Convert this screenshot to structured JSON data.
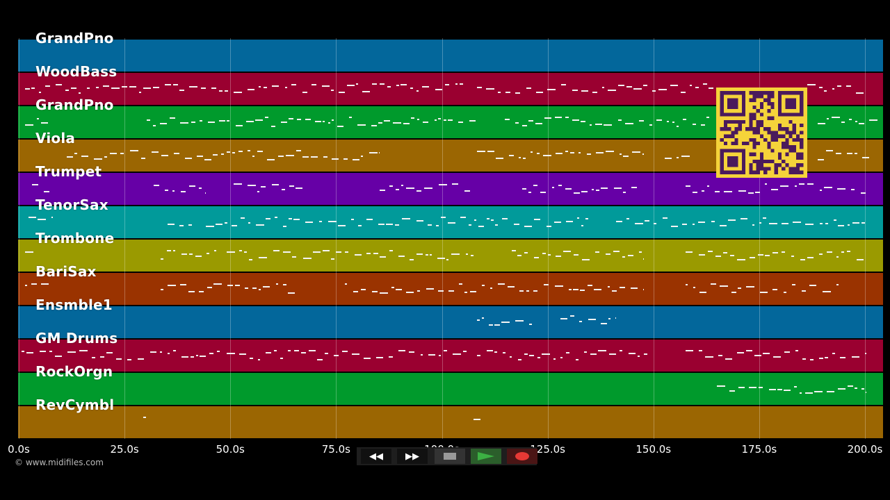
{
  "tracks": [
    {
      "label": "GrandPno",
      "color": "#03679b"
    },
    {
      "label": "WoodBass",
      "color": "#9a0030"
    },
    {
      "label": "GrandPno",
      "color": "#009a2c"
    },
    {
      "label": "Viola",
      "color": "#9b6602"
    },
    {
      "label": "Trumpet",
      "color": "#6600a6"
    },
    {
      "label": "TenorSax",
      "color": "#019a9a"
    },
    {
      "label": "Trombone",
      "color": "#9a9a00"
    },
    {
      "label": "BariSax",
      "color": "#9a3300"
    },
    {
      "label": "Ensmble1",
      "color": "#03679b"
    },
    {
      "label": "GM Drums",
      "color": "#9a0030"
    },
    {
      "label": "RockOrgn",
      "color": "#009a2c"
    },
    {
      "label": "RevCymbl",
      "color": "#9b6602"
    }
  ],
  "timeline": {
    "ticks": [
      "0.0s",
      "25.0s",
      "50.0s",
      "75.0s",
      "100.0s",
      "125.0s",
      "150.0s",
      "175.0s",
      "200.0s"
    ]
  },
  "copyright": "© www.midifiles.com",
  "transport": {
    "rewind_label": "◀◀",
    "forward_label": "▶▶",
    "stop_icon": "stop-icon",
    "play_icon": "play-icon",
    "record_icon": "record-icon",
    "play_color": "#3cb043",
    "record_color": "#e53935"
  },
  "qr_code": {
    "icon": "qr-code-icon",
    "fg": "#4a1a5c",
    "bg": "#f5d33a"
  }
}
